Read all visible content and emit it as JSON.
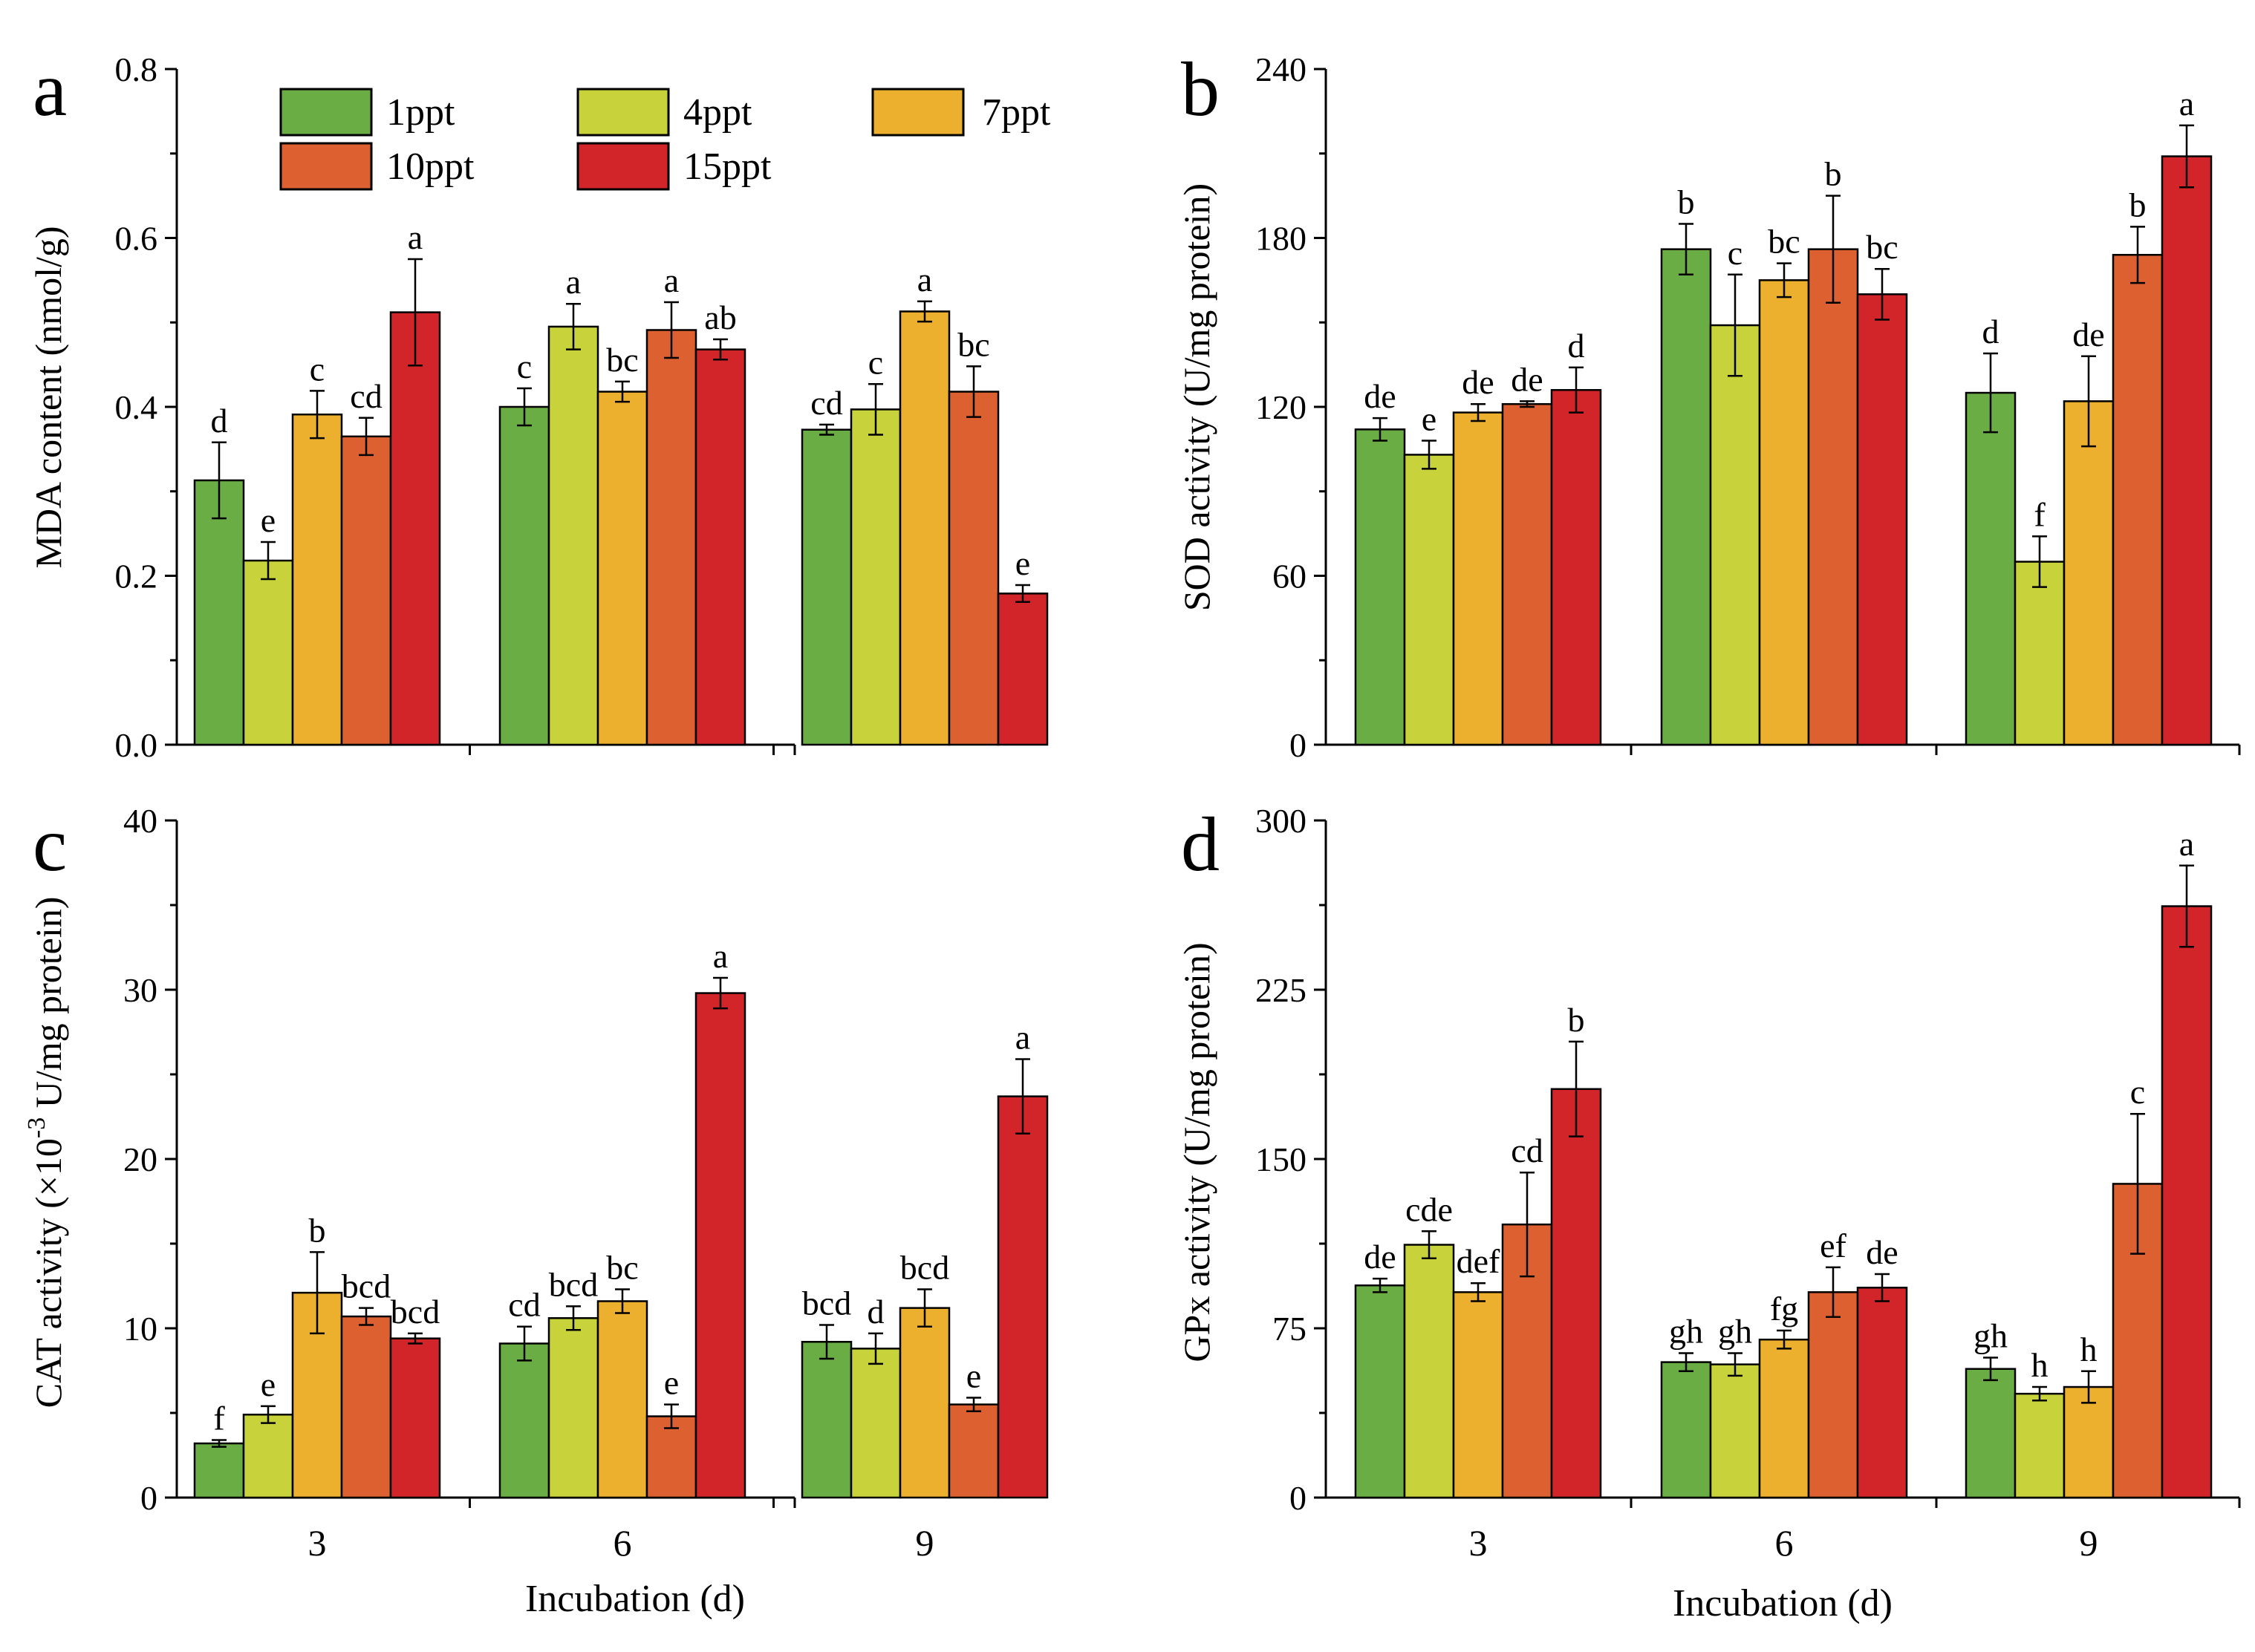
{
  "colors": {
    "1ppt": "#6aad44",
    "4ppt": "#c8d23a",
    "7ppt": "#ecb02e",
    "10ppt": "#dc6030",
    "15ppt": "#d1252a"
  },
  "legend": [
    "1ppt",
    "4ppt",
    "7ppt",
    "10ppt",
    "15ppt"
  ],
  "chart_data": [
    {
      "panel": "a",
      "type": "bar",
      "categories": [
        "3",
        "6",
        "9"
      ],
      "xlabel": "",
      "ylabel": "MDA content (nmol/g)",
      "ylim": [
        0,
        0.8
      ],
      "yticks": [
        "0.0",
        "0.2",
        "0.4",
        "0.6",
        "0.8"
      ],
      "series": [
        {
          "name": "1ppt",
          "values": [
            0.313,
            0.4,
            0.373
          ],
          "errors": [
            0.045,
            0.022,
            0.006
          ],
          "letters": [
            "d",
            "c",
            "cd"
          ]
        },
        {
          "name": "4ppt",
          "values": [
            0.218,
            0.495,
            0.397
          ],
          "errors": [
            0.022,
            0.027,
            0.03
          ],
          "letters": [
            "e",
            "a",
            "c"
          ]
        },
        {
          "name": "7ppt",
          "values": [
            0.391,
            0.418,
            0.513
          ],
          "errors": [
            0.028,
            0.012,
            0.012
          ],
          "letters": [
            "c",
            "bc",
            "a"
          ]
        },
        {
          "name": "10ppt",
          "values": [
            0.365,
            0.491,
            0.418
          ],
          "errors": [
            0.022,
            0.033,
            0.03
          ],
          "letters": [
            "cd",
            "a",
            "bc"
          ]
        },
        {
          "name": "15ppt",
          "values": [
            0.512,
            0.468,
            0.179
          ],
          "errors": [
            0.063,
            0.012,
            0.01
          ],
          "letters": [
            "a",
            "ab",
            "e"
          ]
        }
      ]
    },
    {
      "panel": "b",
      "type": "bar",
      "categories": [
        "3",
        "6",
        "9"
      ],
      "xlabel": "",
      "ylabel": "SOD activity (U/mg protein)",
      "ylim": [
        0,
        240
      ],
      "yticks": [
        "0",
        "60",
        "120",
        "180",
        "240"
      ],
      "series": [
        {
          "name": "1ppt",
          "values": [
            112,
            176,
            125
          ],
          "errors": [
            4,
            9,
            14
          ],
          "letters": [
            "de",
            "b",
            "d"
          ]
        },
        {
          "name": "4ppt",
          "values": [
            103,
            149,
            65
          ],
          "errors": [
            5,
            18,
            9
          ],
          "letters": [
            "e",
            "c",
            "f"
          ]
        },
        {
          "name": "7ppt",
          "values": [
            118,
            165,
            122
          ],
          "errors": [
            3,
            6,
            16
          ],
          "letters": [
            "de",
            "bc",
            "de"
          ]
        },
        {
          "name": "10ppt",
          "values": [
            121,
            176,
            174
          ],
          "errors": [
            1,
            19,
            10
          ],
          "letters": [
            "de",
            "b",
            "b"
          ]
        },
        {
          "name": "15ppt",
          "values": [
            126,
            160,
            209
          ],
          "errors": [
            8,
            9,
            11
          ],
          "letters": [
            "d",
            "bc",
            "a"
          ]
        }
      ]
    },
    {
      "panel": "c",
      "type": "bar",
      "categories": [
        "3",
        "6",
        "9"
      ],
      "xlabel": "Incubation (d)",
      "ylabel_parts": [
        "CAT activity (×10",
        "-3",
        " U/mg protein)"
      ],
      "ylim": [
        0,
        40
      ],
      "yticks": [
        "0",
        "10",
        "20",
        "30",
        "40"
      ],
      "series": [
        {
          "name": "1ppt",
          "values": [
            3.2,
            9.1,
            9.2
          ],
          "errors": [
            0.2,
            1.0,
            1.0
          ],
          "letters": [
            "f",
            "cd",
            "bcd"
          ]
        },
        {
          "name": "4ppt",
          "values": [
            4.9,
            10.6,
            8.8
          ],
          "errors": [
            0.5,
            0.7,
            0.9
          ],
          "letters": [
            "e",
            "bcd",
            "d"
          ]
        },
        {
          "name": "7ppt",
          "values": [
            12.1,
            11.6,
            11.2
          ],
          "errors": [
            2.4,
            0.7,
            1.1
          ],
          "letters": [
            "b",
            "bc",
            "bcd"
          ]
        },
        {
          "name": "10ppt",
          "values": [
            10.7,
            4.8,
            5.5
          ],
          "errors": [
            0.5,
            0.7,
            0.4
          ],
          "letters": [
            "bcd",
            "e",
            "e"
          ]
        },
        {
          "name": "15ppt",
          "values": [
            9.4,
            29.8,
            23.7
          ],
          "errors": [
            0.3,
            0.9,
            2.2
          ],
          "letters": [
            "bcd",
            "a",
            "a"
          ]
        }
      ]
    },
    {
      "panel": "d",
      "type": "bar",
      "categories": [
        "3",
        "6",
        "9"
      ],
      "xlabel": "Incubation (d)",
      "ylabel": "GPx activity (U/mg protein)",
      "ylim": [
        0,
        300
      ],
      "yticks": [
        "0",
        "75",
        "150",
        "225",
        "300"
      ],
      "series": [
        {
          "name": "1ppt",
          "values": [
            94,
            60,
            57
          ],
          "errors": [
            3,
            4,
            5
          ],
          "letters": [
            "de",
            "gh",
            "gh"
          ]
        },
        {
          "name": "4ppt",
          "values": [
            112,
            59,
            46
          ],
          "errors": [
            6,
            5,
            3
          ],
          "letters": [
            "cde",
            "gh",
            "h"
          ]
        },
        {
          "name": "7ppt",
          "values": [
            91,
            70,
            49
          ],
          "errors": [
            4,
            4,
            7
          ],
          "letters": [
            "def",
            "fg",
            "h"
          ]
        },
        {
          "name": "10ppt",
          "values": [
            121,
            91,
            139
          ],
          "errors": [
            23,
            11,
            31
          ],
          "letters": [
            "cd",
            "ef",
            "c"
          ]
        },
        {
          "name": "15ppt",
          "values": [
            181,
            93,
            262
          ],
          "errors": [
            21,
            6,
            18
          ],
          "letters": [
            "b",
            "de",
            "a"
          ]
        }
      ]
    }
  ]
}
